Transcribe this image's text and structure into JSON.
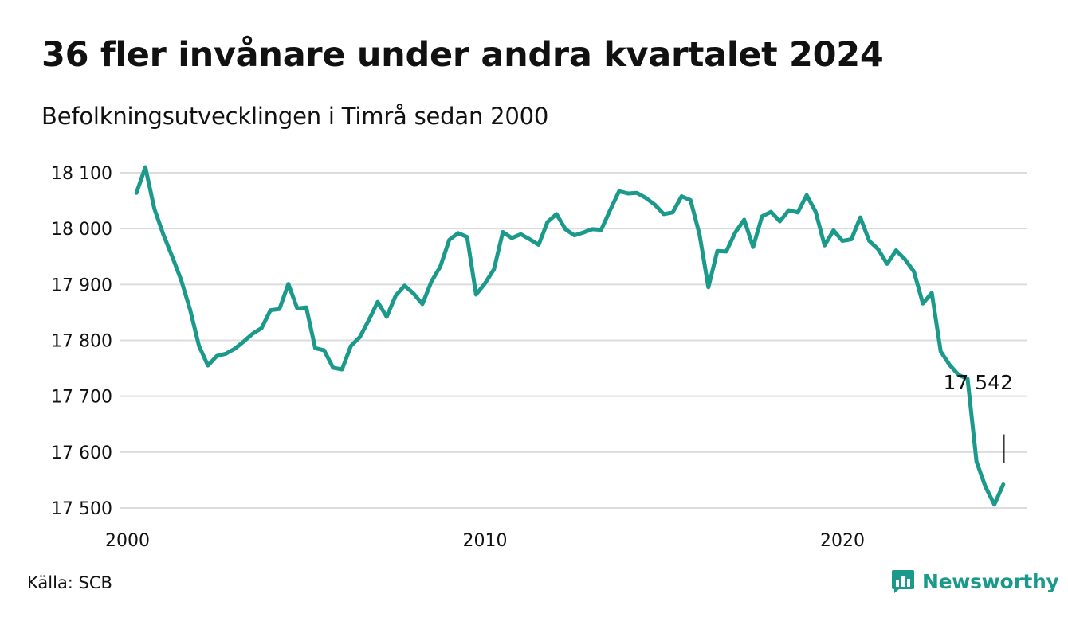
{
  "title": "36 fler invånare under andra kvartalet 2024",
  "subtitle": "Befolkningsutvecklingen i Timrå sedan 2000",
  "source": "Källa: SCB",
  "brand": {
    "name": "Newsworthy",
    "icon": "bar-chart-logo-icon",
    "color": "#1b9a8b"
  },
  "colors": {
    "line": "#1b9a8b",
    "grid": "#dcdcdc"
  },
  "chart_data": {
    "type": "line",
    "title": "36 fler invånare under andra kvartalet 2024",
    "subtitle": "Befolkningsutvecklingen i Timrå sedan 2000",
    "ylim": [
      17490,
      18120
    ],
    "xlim": [
      2000,
      2025.2
    ],
    "grid": true,
    "y_ticks": [
      17500,
      17600,
      17700,
      17800,
      17900,
      18000,
      18100
    ],
    "y_tick_labels": [
      "17 500",
      "17 600",
      "17 700",
      "17 800",
      "17 900",
      "18 000",
      "18 100"
    ],
    "x_ticks": [
      2000,
      2010,
      2020
    ],
    "x_tick_labels": [
      "2000",
      "2010",
      "2020"
    ],
    "series": [
      {
        "x": [
          2000.25,
          2000.5,
          2000.75,
          2001.0,
          2001.25,
          2001.5,
          2001.75,
          2002.0,
          2002.25,
          2002.5,
          2002.75,
          2003.0,
          2003.25,
          2003.5,
          2003.75,
          2004.0,
          2004.25,
          2004.5,
          2004.75,
          2005.0,
          2005.25,
          2005.5,
          2005.75,
          2006.0,
          2006.25,
          2006.5,
          2006.75,
          2007.0,
          2007.25,
          2007.5,
          2007.75,
          2008.0,
          2008.25,
          2008.5,
          2008.75,
          2009.0,
          2009.25,
          2009.5,
          2009.75,
          2010.0,
          2010.25,
          2010.5,
          2010.75,
          2011.0,
          2011.25,
          2011.5,
          2011.75,
          2012.0,
          2012.25,
          2012.5,
          2012.75,
          2013.0,
          2013.25,
          2013.5,
          2013.75,
          2014.0,
          2014.25,
          2014.5,
          2014.75,
          2015.0,
          2015.25,
          2015.5,
          2015.75,
          2016.0,
          2016.25,
          2016.5,
          2016.75,
          2017.0,
          2017.25,
          2017.5,
          2017.75,
          2018.0,
          2018.25,
          2018.5,
          2018.75,
          2019.0,
          2019.25,
          2019.5,
          2019.75,
          2020.0,
          2020.25,
          2020.5,
          2020.75,
          2021.0,
          2021.25,
          2021.5,
          2021.75,
          2022.0,
          2022.25,
          2022.5,
          2022.75,
          2023.0,
          2023.25,
          2023.5,
          2023.75,
          2024.0,
          2024.25,
          2024.5
        ],
        "values": [
          18064,
          18110,
          18036,
          17990,
          17950,
          17908,
          17855,
          17790,
          17755,
          17772,
          17776,
          17785,
          17798,
          17812,
          17822,
          17854,
          17856,
          17901,
          17857,
          17859,
          17786,
          17782,
          17751,
          17748,
          17790,
          17806,
          17836,
          17869,
          17842,
          17880,
          17898,
          17884,
          17865,
          17905,
          17932,
          17980,
          17992,
          17985,
          17882,
          17902,
          17927,
          17994,
          17983,
          17990,
          17981,
          17971,
          18012,
          18026,
          17999,
          17988,
          17993,
          17999,
          17998,
          18033,
          18067,
          18063,
          18064,
          18055,
          18043,
          18026,
          18029,
          18058,
          18051,
          17990,
          17895,
          17960,
          17959,
          17993,
          18016,
          17967,
          18022,
          18030,
          18013,
          18033,
          18029,
          18060,
          18030,
          17970,
          17997,
          17978,
          17981,
          18020,
          17978,
          17963,
          17937,
          17961,
          17945,
          17923,
          17866,
          17885,
          17780,
          17756,
          17738,
          17731,
          17583,
          17538,
          17506,
          17542
        ]
      }
    ],
    "annotation": {
      "text": "17 542"
    }
  }
}
